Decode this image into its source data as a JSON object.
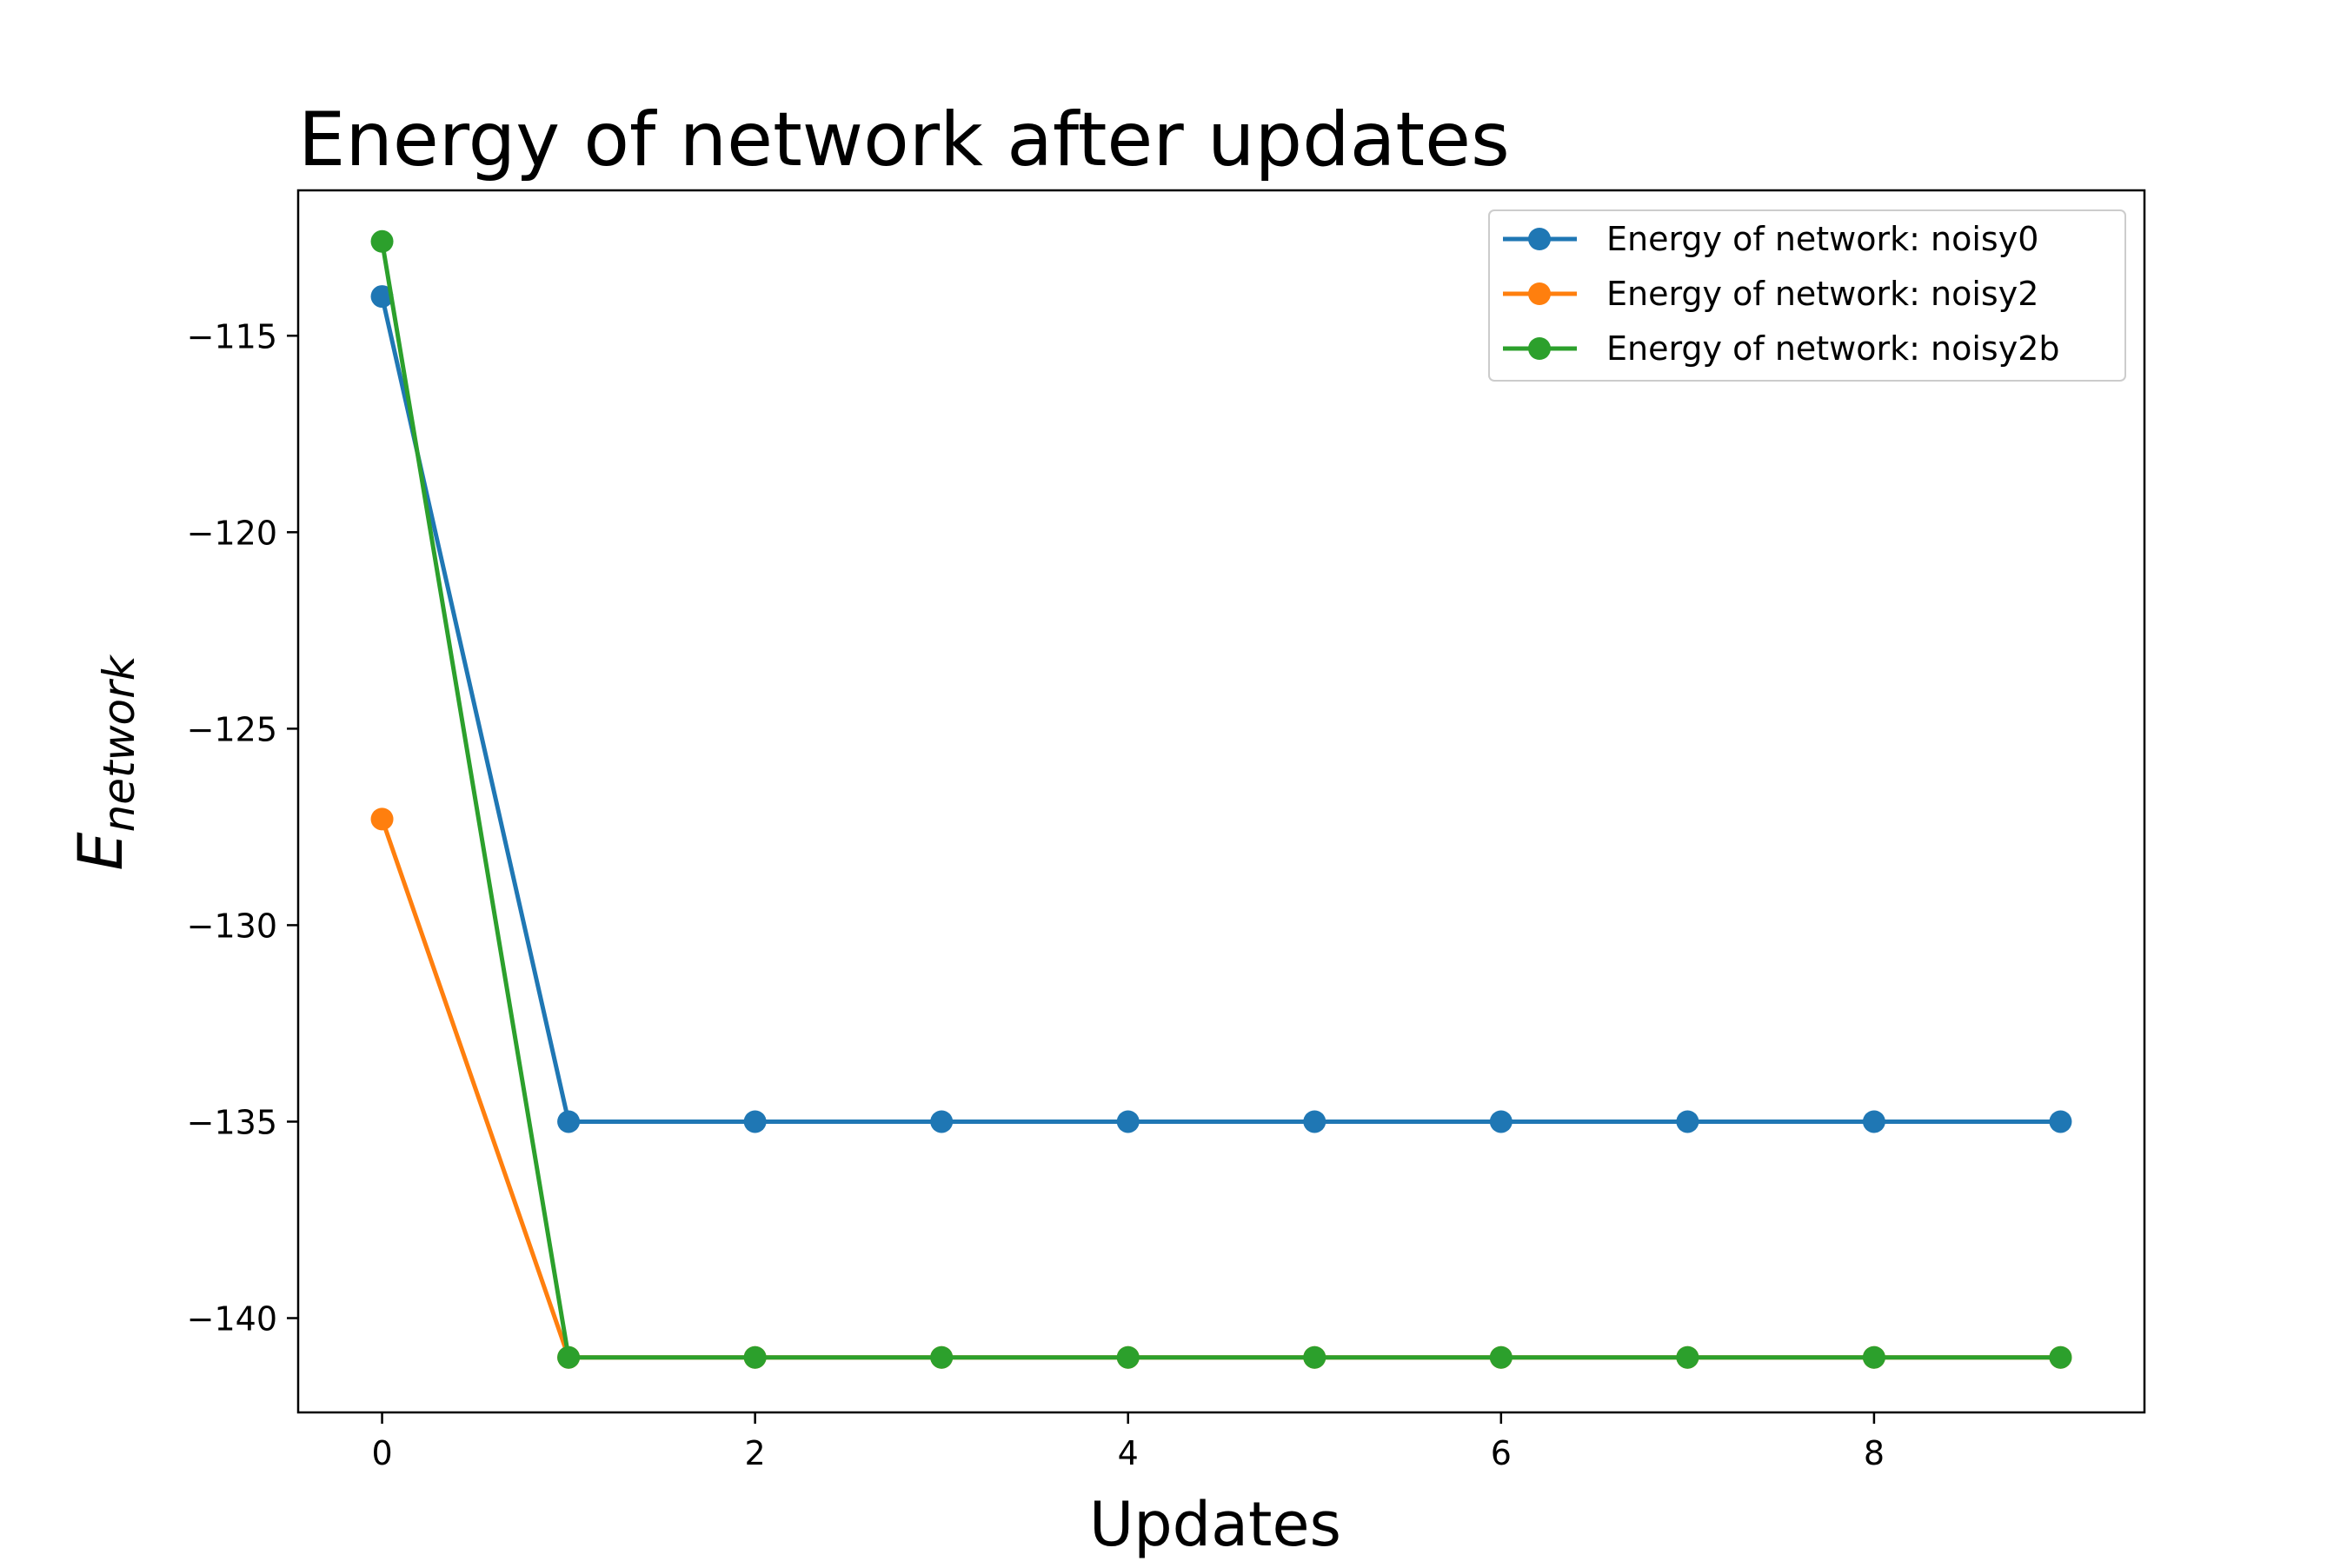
{
  "chart_data": {
    "type": "line",
    "title": "Energy of network after updates",
    "xlabel": "Updates",
    "ylabel": {
      "main": "E",
      "subscript": "network"
    },
    "xlim": [
      -0.45,
      9.45
    ],
    "ylim": [
      -142.4,
      -111.3
    ],
    "xticks": [
      0,
      2,
      4,
      6,
      8
    ],
    "yticks": [
      -115,
      -120,
      -125,
      -130,
      -135,
      -140
    ],
    "xtick_labels": [
      "0",
      "2",
      "4",
      "6",
      "8"
    ],
    "ytick_labels": [
      "−115",
      "−120",
      "−125",
      "−130",
      "−135",
      "−140"
    ],
    "grid": false,
    "legend_position": "upper-right",
    "x": [
      0,
      1,
      2,
      3,
      4,
      5,
      6,
      7,
      8,
      9
    ],
    "series": [
      {
        "name": "Energy of network: noisy0",
        "color": "#1f77b4",
        "values": [
          -114,
          -135,
          -135,
          -135,
          -135,
          -135,
          -135,
          -135,
          -135,
          -135
        ]
      },
      {
        "name": "Energy of network: noisy2",
        "color": "#ff7f0e",
        "values": [
          -127.3,
          -141,
          -141,
          -141,
          -141,
          -141,
          -141,
          -141,
          -141,
          -141
        ]
      },
      {
        "name": "Energy of network: noisy2b",
        "color": "#2ca02c",
        "values": [
          -112.6,
          -141,
          -141,
          -141,
          -141,
          -141,
          -141,
          -141,
          -141,
          -141
        ]
      }
    ]
  }
}
